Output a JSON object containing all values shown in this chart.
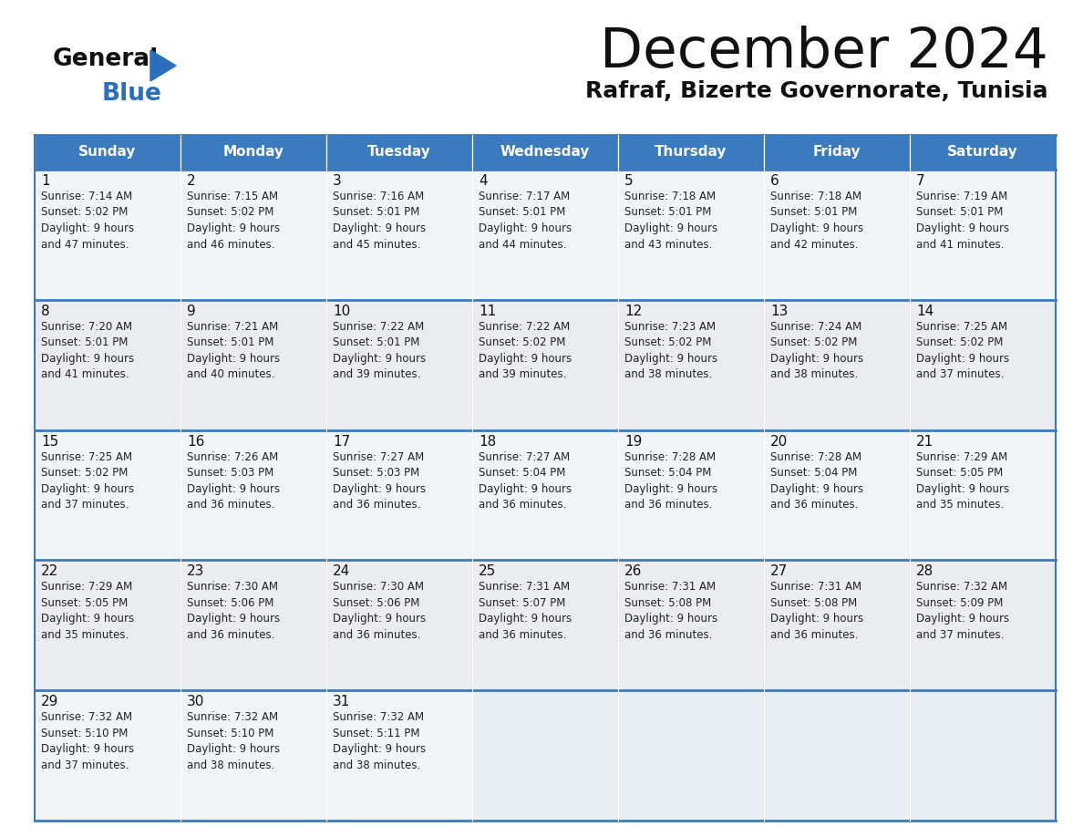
{
  "title": "December 2024",
  "subtitle": "Rafraf, Bizerte Governorate, Tunisia",
  "days_of_week": [
    "Sunday",
    "Monday",
    "Tuesday",
    "Wednesday",
    "Thursday",
    "Friday",
    "Saturday"
  ],
  "header_bg": "#3a7abf",
  "header_text": "#ffffff",
  "border_color": "#3a7abf",
  "cell_bg_even": "#f2f5f8",
  "cell_bg_odd": "#e8ecf0",
  "cell_bg_empty": "#e0e5ea",
  "cell_text_color": "#222222",
  "day_num_color": "#111111",
  "logo_black": "#111111",
  "logo_blue": "#2a6fba",
  "calendar_data": [
    [
      {
        "day": 1,
        "sunrise": "7:14 AM",
        "sunset": "5:02 PM",
        "daylight": "9 hours and 47 minutes."
      },
      {
        "day": 2,
        "sunrise": "7:15 AM",
        "sunset": "5:02 PM",
        "daylight": "9 hours and 46 minutes."
      },
      {
        "day": 3,
        "sunrise": "7:16 AM",
        "sunset": "5:01 PM",
        "daylight": "9 hours and 45 minutes."
      },
      {
        "day": 4,
        "sunrise": "7:17 AM",
        "sunset": "5:01 PM",
        "daylight": "9 hours and 44 minutes."
      },
      {
        "day": 5,
        "sunrise": "7:18 AM",
        "sunset": "5:01 PM",
        "daylight": "9 hours and 43 minutes."
      },
      {
        "day": 6,
        "sunrise": "7:18 AM",
        "sunset": "5:01 PM",
        "daylight": "9 hours and 42 minutes."
      },
      {
        "day": 7,
        "sunrise": "7:19 AM",
        "sunset": "5:01 PM",
        "daylight": "9 hours and 41 minutes."
      }
    ],
    [
      {
        "day": 8,
        "sunrise": "7:20 AM",
        "sunset": "5:01 PM",
        "daylight": "9 hours and 41 minutes."
      },
      {
        "day": 9,
        "sunrise": "7:21 AM",
        "sunset": "5:01 PM",
        "daylight": "9 hours and 40 minutes."
      },
      {
        "day": 10,
        "sunrise": "7:22 AM",
        "sunset": "5:01 PM",
        "daylight": "9 hours and 39 minutes."
      },
      {
        "day": 11,
        "sunrise": "7:22 AM",
        "sunset": "5:02 PM",
        "daylight": "9 hours and 39 minutes."
      },
      {
        "day": 12,
        "sunrise": "7:23 AM",
        "sunset": "5:02 PM",
        "daylight": "9 hours and 38 minutes."
      },
      {
        "day": 13,
        "sunrise": "7:24 AM",
        "sunset": "5:02 PM",
        "daylight": "9 hours and 38 minutes."
      },
      {
        "day": 14,
        "sunrise": "7:25 AM",
        "sunset": "5:02 PM",
        "daylight": "9 hours and 37 minutes."
      }
    ],
    [
      {
        "day": 15,
        "sunrise": "7:25 AM",
        "sunset": "5:02 PM",
        "daylight": "9 hours and 37 minutes."
      },
      {
        "day": 16,
        "sunrise": "7:26 AM",
        "sunset": "5:03 PM",
        "daylight": "9 hours and 36 minutes."
      },
      {
        "day": 17,
        "sunrise": "7:27 AM",
        "sunset": "5:03 PM",
        "daylight": "9 hours and 36 minutes."
      },
      {
        "day": 18,
        "sunrise": "7:27 AM",
        "sunset": "5:04 PM",
        "daylight": "9 hours and 36 minutes."
      },
      {
        "day": 19,
        "sunrise": "7:28 AM",
        "sunset": "5:04 PM",
        "daylight": "9 hours and 36 minutes."
      },
      {
        "day": 20,
        "sunrise": "7:28 AM",
        "sunset": "5:04 PM",
        "daylight": "9 hours and 36 minutes."
      },
      {
        "day": 21,
        "sunrise": "7:29 AM",
        "sunset": "5:05 PM",
        "daylight": "9 hours and 35 minutes."
      }
    ],
    [
      {
        "day": 22,
        "sunrise": "7:29 AM",
        "sunset": "5:05 PM",
        "daylight": "9 hours and 35 minutes."
      },
      {
        "day": 23,
        "sunrise": "7:30 AM",
        "sunset": "5:06 PM",
        "daylight": "9 hours and 36 minutes."
      },
      {
        "day": 24,
        "sunrise": "7:30 AM",
        "sunset": "5:06 PM",
        "daylight": "9 hours and 36 minutes."
      },
      {
        "day": 25,
        "sunrise": "7:31 AM",
        "sunset": "5:07 PM",
        "daylight": "9 hours and 36 minutes."
      },
      {
        "day": 26,
        "sunrise": "7:31 AM",
        "sunset": "5:08 PM",
        "daylight": "9 hours and 36 minutes."
      },
      {
        "day": 27,
        "sunrise": "7:31 AM",
        "sunset": "5:08 PM",
        "daylight": "9 hours and 36 minutes."
      },
      {
        "day": 28,
        "sunrise": "7:32 AM",
        "sunset": "5:09 PM",
        "daylight": "9 hours and 37 minutes."
      }
    ],
    [
      {
        "day": 29,
        "sunrise": "7:32 AM",
        "sunset": "5:10 PM",
        "daylight": "9 hours and 37 minutes."
      },
      {
        "day": 30,
        "sunrise": "7:32 AM",
        "sunset": "5:10 PM",
        "daylight": "9 hours and 38 minutes."
      },
      {
        "day": 31,
        "sunrise": "7:32 AM",
        "sunset": "5:11 PM",
        "daylight": "9 hours and 38 minutes."
      },
      null,
      null,
      null,
      null
    ]
  ]
}
